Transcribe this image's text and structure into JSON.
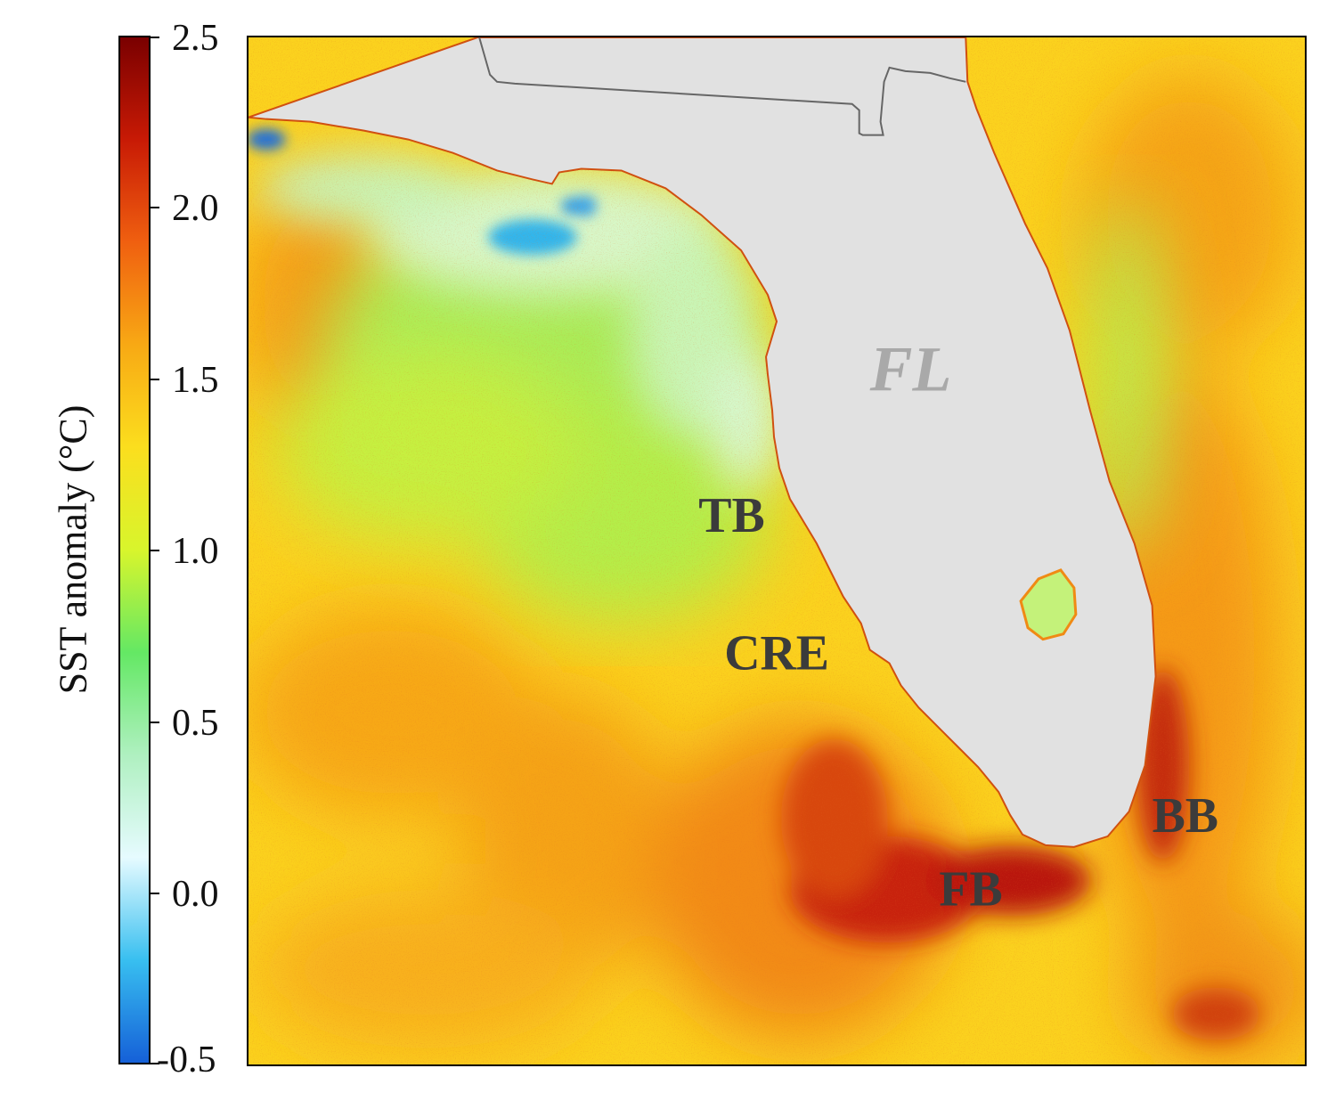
{
  "colorbar": {
    "title": "SST anomaly (°C)",
    "ticks": [
      "2.5",
      "2.0",
      "1.5",
      "1.0",
      "0.5",
      "0.0",
      "-0.5"
    ],
    "range": [
      -0.5,
      2.5
    ],
    "colors": [
      "#1560d8",
      "#38bff0",
      "#e6fbff",
      "#aff0c0",
      "#64e864",
      "#d8f52c",
      "#fbde1e",
      "#f8a914",
      "#f06010",
      "#c81a05",
      "#7a0000"
    ]
  },
  "map": {
    "land_color": "#e1e1e1",
    "labels": {
      "state": "FL",
      "tb": "TB",
      "cre": "CRE",
      "fb": "FB",
      "bb": "BB"
    }
  }
}
